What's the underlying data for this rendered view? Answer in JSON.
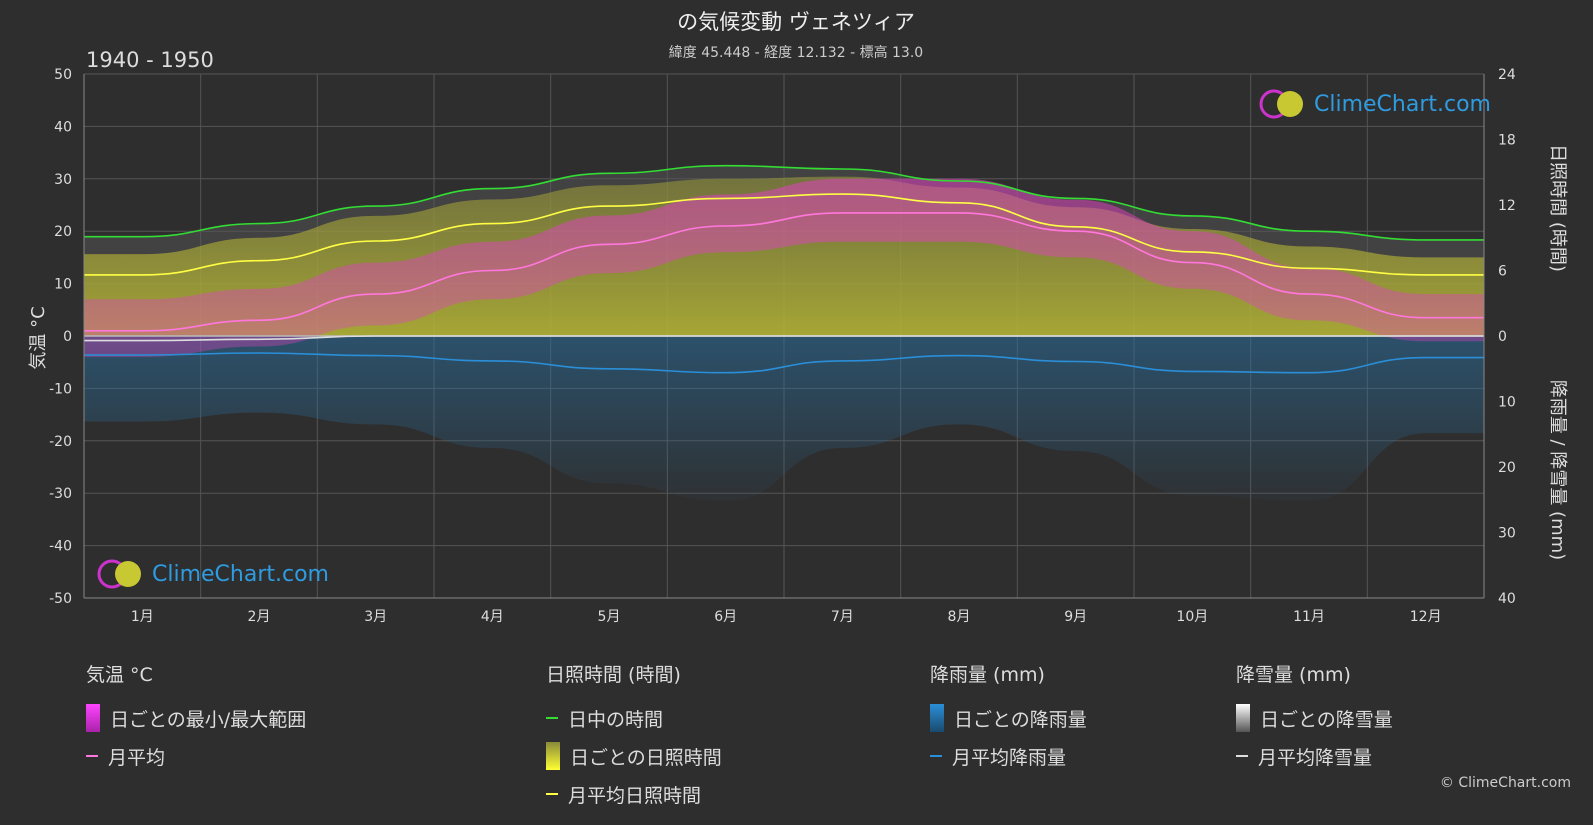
{
  "header": {
    "title": "の気候変動 ヴェネツィア",
    "subtitle": "緯度 45.448 - 経度 12.132 - 標高 13.0",
    "period": "1940 - 1950"
  },
  "watermark": {
    "text": "ClimeChart.com"
  },
  "copyright": "© ClimeChart.com",
  "legend": {
    "temperature": {
      "title": "気温 °C",
      "items": [
        "日ごとの最小/最大範囲",
        "月平均"
      ]
    },
    "sunshine": {
      "title": "日照時間 (時間)",
      "items": [
        "日中の時間",
        "日ごとの日照時間",
        "月平均日照時間"
      ]
    },
    "rain": {
      "title": "降雨量 (mm)",
      "items": [
        "日ごとの降雨量",
        "月平均降雨量"
      ]
    },
    "snow": {
      "title": "降雪量 (mm)",
      "items": [
        "日ごとの降雪量",
        "月平均降雪量"
      ]
    }
  },
  "colors": {
    "daylight": "#33dd33",
    "sunshine_avg": "#ffff44",
    "sunshine_daily": "#b8b832",
    "temp_avg": "#ff77dd",
    "temp_range": "#e040c0",
    "rain": "#2a8fd8",
    "snow": "#dddddd",
    "grid": "#555555"
  },
  "chart_data": {
    "type": "line",
    "categories": [
      "1月",
      "2月",
      "3月",
      "4月",
      "5月",
      "6月",
      "7月",
      "8月",
      "9月",
      "10月",
      "11月",
      "12月"
    ],
    "y_left": {
      "label": "気温 °C",
      "range": [
        -50,
        50
      ],
      "ticks": [
        50,
        40,
        30,
        20,
        10,
        0,
        -10,
        -20,
        -30,
        -40,
        -50
      ]
    },
    "y_right_top": {
      "label": "日照時間 (時間)",
      "range": [
        0,
        24
      ],
      "ticks": [
        24,
        18,
        12,
        6,
        0
      ]
    },
    "y_right_bottom": {
      "label": "降雨量 / 降雪量 (mm)",
      "range": [
        0,
        40
      ],
      "ticks": [
        0,
        10,
        20,
        30,
        40
      ]
    },
    "grid": true,
    "series": [
      {
        "name": "日中の時間",
        "axis": "sunshine_hours",
        "values": [
          9.1,
          10.3,
          11.9,
          13.5,
          14.9,
          15.6,
          15.3,
          14.2,
          12.6,
          11.0,
          9.6,
          8.8
        ]
      },
      {
        "name": "月平均日照時間",
        "axis": "sunshine_hours",
        "values": [
          5.6,
          6.9,
          8.7,
          10.3,
          11.9,
          12.6,
          13.0,
          12.2,
          10.0,
          7.7,
          6.2,
          5.6
        ]
      },
      {
        "name": "月平均",
        "axis": "temperature_c",
        "values": [
          1.0,
          3.0,
          8.0,
          12.5,
          17.5,
          21.0,
          23.5,
          23.5,
          20.0,
          14.0,
          8.0,
          3.5
        ]
      },
      {
        "name": "月平均降雨量",
        "axis": "precip_mm",
        "values": [
          2.9,
          2.6,
          3.0,
          3.8,
          5.0,
          5.6,
          3.8,
          3.0,
          3.9,
          5.4,
          5.6,
          3.3
        ]
      },
      {
        "name": "月平均降雪量",
        "axis": "precip_mm",
        "values": [
          0.7,
          0.5,
          0,
          0,
          0,
          0,
          0,
          0,
          0,
          0,
          0,
          0
        ]
      }
    ],
    "daily_temp_range": {
      "name": "日ごとの最小/最大範囲",
      "min": [
        -4,
        -2,
        2,
        7,
        12,
        16,
        18,
        18,
        15,
        9,
        3,
        -1
      ],
      "max": [
        7,
        9,
        14,
        18,
        23,
        27,
        30,
        30,
        26,
        20,
        13,
        8
      ]
    },
    "daily_sunshine_max": {
      "name": "日ごとの日照時間",
      "values": [
        7.5,
        9.0,
        11.0,
        12.5,
        13.8,
        14.4,
        14.6,
        13.6,
        11.8,
        9.8,
        8.2,
        7.2
      ]
    }
  }
}
